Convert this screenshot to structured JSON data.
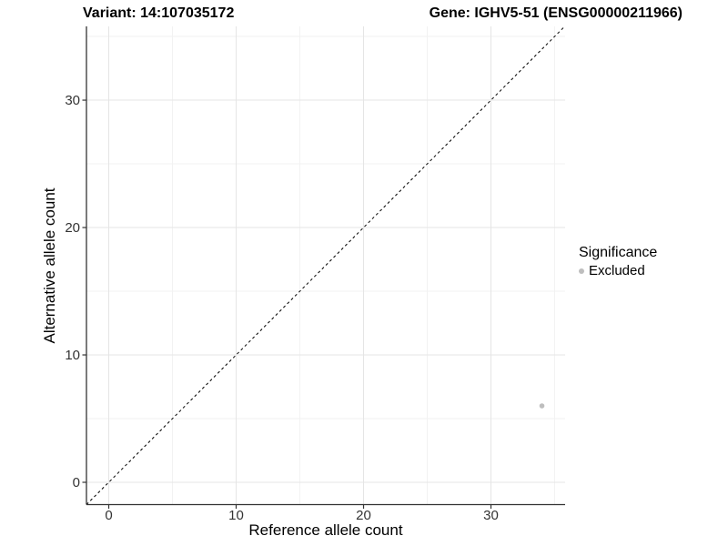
{
  "header": {
    "variant_title": "Variant: 14:107035172",
    "gene_title": "Gene: IGHV5-51 (ENSG00000211966)"
  },
  "chart_data": {
    "type": "scatter",
    "title": "",
    "xlabel": "Reference allele count",
    "ylabel": "Alternative allele count",
    "xlim": [
      -1.75,
      35.82
    ],
    "ylim": [
      -1.75,
      35.79
    ],
    "x_ticks": [
      0,
      10,
      20,
      30
    ],
    "y_ticks": [
      0,
      10,
      20,
      30
    ],
    "x_minor_ticks": [
      5,
      15,
      25,
      35
    ],
    "y_minor_ticks": [
      5,
      15,
      25,
      35
    ],
    "grid": true,
    "reference_line": {
      "type": "identity",
      "style": "dashed",
      "color": "#000000"
    },
    "series": [
      {
        "name": "Excluded",
        "color": "#bebebe",
        "points": [
          {
            "x": 34,
            "y": 6
          }
        ]
      }
    ],
    "legend": {
      "title": "Significance",
      "position": "right",
      "items": [
        {
          "label": "Excluded",
          "color": "#bebebe"
        }
      ]
    }
  },
  "colors": {
    "background": "#ffffff",
    "axis_line": "#333333",
    "grid_major": "#e5e5e5",
    "grid_minor": "#f2f2f2",
    "tick_text": "#333333"
  }
}
